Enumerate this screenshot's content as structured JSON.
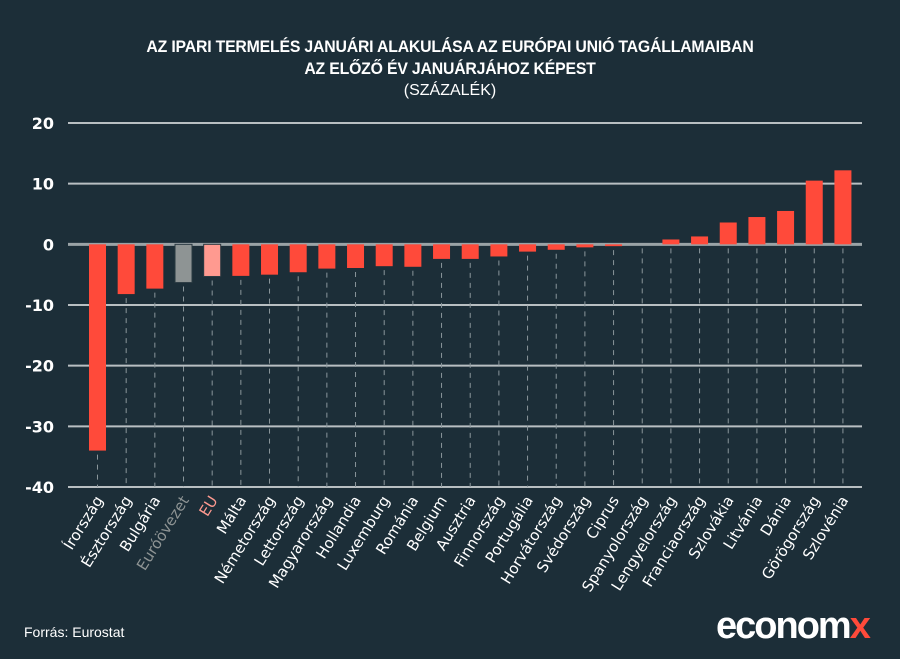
{
  "colors": {
    "background": "#1c2e38",
    "bar_default": "#ff4a3a",
    "bar_eurozone": "#8e9494",
    "bar_eu": "#ff9a90",
    "label_default": "#ffffff",
    "label_eurozone": "#8e9494",
    "label_eu": "#ff9a90",
    "gridline": "#b8bfc2",
    "zero_line": "#9aa3a6",
    "dashed_guide": "#8a969b"
  },
  "header": {
    "title_line1": "AZ IPARI TERMELÉS JANUÁRI ALAKULÁSA AZ EURÓPAI UNIÓ TAGÁLLAMAIBAN",
    "title_line2": "AZ ELŐZŐ ÉV JANUÁRJÁHOZ KÉPEST",
    "subtitle": "(SZÁZALÉK)"
  },
  "footer": {
    "source": "Forrás: Eurostat",
    "logo_main": "econom",
    "logo_accent": "x"
  },
  "chart_data": {
    "type": "bar",
    "title": "AZ IPARI TERMELÉS JANUÁRI ALAKULÁSA AZ EURÓPAI UNIÓ TAGÁLLAMAIBAN AZ ELŐZŐ ÉV JANUÁRJÁHOZ KÉPEST",
    "subtitle": "(SZÁZALÉK)",
    "xlabel": "",
    "ylabel": "",
    "ylim": [
      -40,
      20
    ],
    "yticks": [
      20,
      10,
      0,
      -10,
      -20,
      -30,
      -40
    ],
    "grid": true,
    "legend": "none",
    "categories": [
      "Írország",
      "Észtország",
      "Bulgária",
      "Euróövezet",
      "EU",
      "Málta",
      "Németország",
      "Lettország",
      "Magyarország",
      "Hollandia",
      "Luxemburg",
      "Románia",
      "Belgium",
      "Ausztria",
      "Finnország",
      "Portugália",
      "Horvátország",
      "Svédország",
      "Ciprus",
      "Spanyolország",
      "Lengyelország",
      "Franciaország",
      "Szlovákia",
      "Litvánia",
      "Dánia",
      "Görögország",
      "Szlovénia"
    ],
    "values": [
      -34.0,
      -8.2,
      -7.3,
      -6.3,
      -5.3,
      -5.2,
      -5.0,
      -4.6,
      -4.0,
      -3.9,
      -3.6,
      -3.7,
      -2.4,
      -2.4,
      -2.0,
      -1.2,
      -0.9,
      -0.5,
      -0.3,
      0.0,
      0.8,
      1.3,
      3.6,
      4.5,
      5.5,
      10.5,
      12.2
    ],
    "highlight": {
      "Euróövezet": "eurozone",
      "EU": "eu"
    },
    "source": "Forrás: Eurostat"
  }
}
